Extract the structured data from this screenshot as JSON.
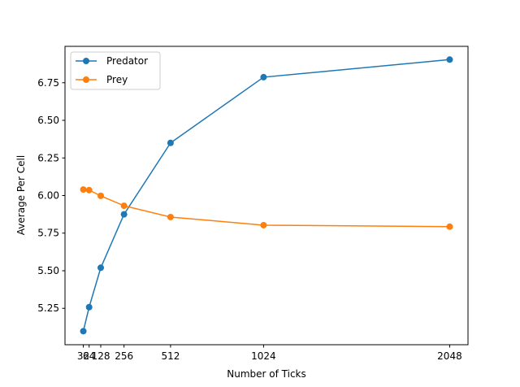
{
  "chart_data": {
    "type": "line",
    "title": "",
    "xlabel": "Number of Ticks",
    "ylabel": "Average Per Cell",
    "x": [
      32,
      64,
      128,
      256,
      512,
      1024,
      2048
    ],
    "x_ticks": [
      32,
      64,
      128,
      256,
      512,
      1024,
      2048
    ],
    "y_ticks": [
      "5.25",
      "5.50",
      "5.75",
      "6.00",
      "6.25",
      "6.50",
      "6.75"
    ],
    "xlim": [
      -68.8,
      2148.8
    ],
    "ylim": [
      5.008,
      6.992
    ],
    "grid": false,
    "legend_position": "top-left",
    "series": [
      {
        "name": "Predator",
        "color": "#1f77b4",
        "values": [
          5.098,
          5.258,
          5.52,
          5.875,
          6.35,
          6.787,
          6.904
        ]
      },
      {
        "name": "Prey",
        "color": "#ff7f0e",
        "values": [
          6.04,
          6.036,
          5.998,
          5.932,
          5.857,
          5.803,
          5.793
        ]
      }
    ]
  }
}
